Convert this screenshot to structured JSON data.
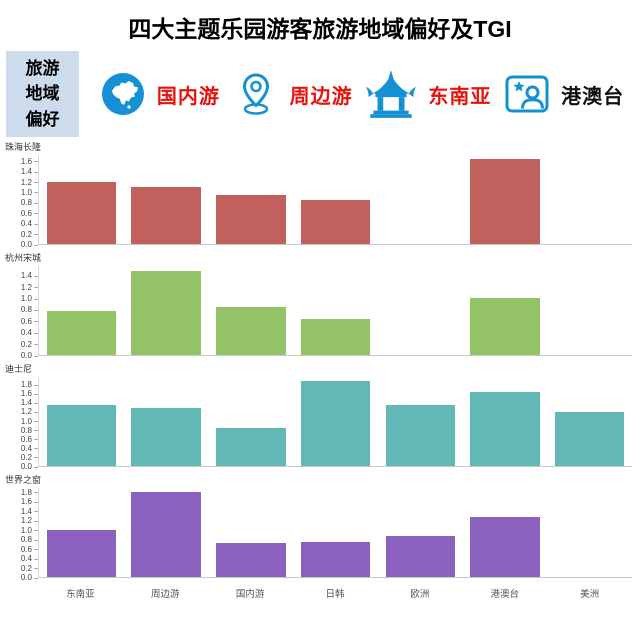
{
  "title": "四大主题乐园游客旅游地域偏好及TGI",
  "legend": {
    "panel_label_lines": [
      "旅游",
      "地域",
      "偏好"
    ],
    "panel_bg": "#ccdcec",
    "icon_color": "#1690d4",
    "items": [
      {
        "label": "国内游",
        "icon": "china-map-icon",
        "label_color": "#e8120c"
      },
      {
        "label": "周边游",
        "icon": "location-pin-icon",
        "label_color": "#e8120c"
      },
      {
        "label": "东南亚",
        "icon": "temple-icon",
        "label_color": "#e8120c"
      },
      {
        "label": "港澳台",
        "icon": "hk-traveler-icon",
        "label_color": "#111111"
      }
    ]
  },
  "chart_data": {
    "type": "bar",
    "title": "四大主题乐园游客旅游地域偏好及TGI",
    "categories": [
      "东南亚",
      "周边游",
      "国内游",
      "日韩",
      "欧洲",
      "港澳台",
      "美洲"
    ],
    "grid": false,
    "legend_position": "top",
    "axis_color": "#c9c9c9",
    "tick_label_color": "#444444",
    "panels": [
      {
        "name": "珠海长隆",
        "color": "#c0615e",
        "ymax": 1.6,
        "ytick_step": 0.2,
        "values": [
          1.2,
          1.1,
          0.95,
          0.85,
          0,
          1.65,
          0
        ]
      },
      {
        "name": "杭州宋城",
        "color": "#93c366",
        "ymax": 1.4,
        "ytick_step": 0.2,
        "values": [
          0.78,
          1.5,
          0.86,
          0.64,
          0,
          1.02,
          0
        ]
      },
      {
        "name": "迪士尼",
        "color": "#62b8b4",
        "ymax": 1.8,
        "ytick_step": 0.2,
        "values": [
          1.35,
          1.3,
          0.85,
          1.9,
          1.35,
          1.65,
          1.2
        ]
      },
      {
        "name": "世界之窗",
        "color": "#8b63bf",
        "ymax": 1.8,
        "ytick_step": 0.2,
        "values": [
          1.0,
          1.82,
          0.72,
          0.75,
          0.88,
          1.28,
          0
        ]
      }
    ]
  }
}
